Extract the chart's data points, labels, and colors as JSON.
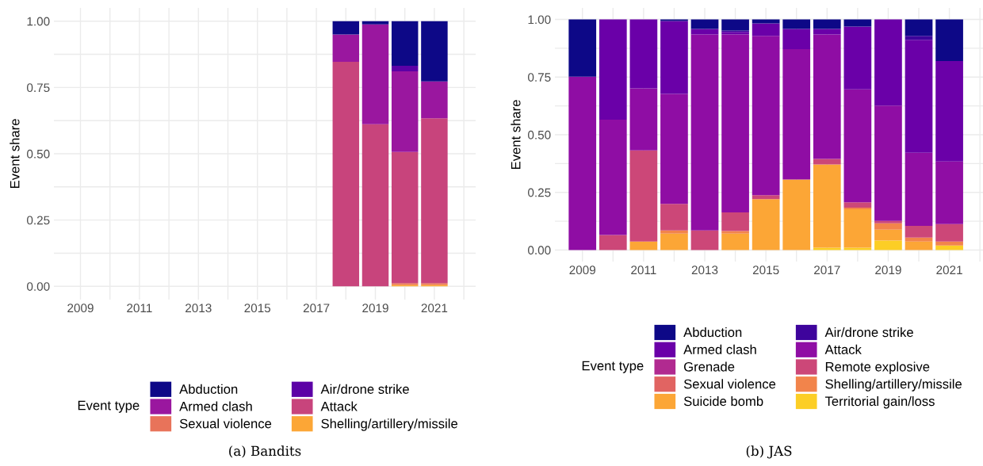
{
  "chart_data": [
    {
      "type": "bar",
      "stacked": true,
      "ylabel": "Event share",
      "legend_title": "Event type",
      "legend": "bottom",
      "grid": true,
      "annotations": [
        "(a) Bandits"
      ],
      "x": [
        2018,
        2019,
        2020,
        2021
      ],
      "xlim": [
        2008.1,
        2022.4
      ],
      "xticks": [
        2009,
        {
          "value": 2010,
          "label": null
        },
        2011,
        {
          "value": 2012,
          "label": null
        },
        2013,
        {
          "value": 2014,
          "label": null
        },
        2015,
        {
          "value": 2016,
          "label": null
        },
        2017,
        {
          "value": 2018,
          "label": null
        },
        2019,
        {
          "value": 2020,
          "label": null
        },
        2021,
        {
          "value": 2022,
          "label": null
        }
      ],
      "ylim": [
        -0.05,
        1.05
      ],
      "yticks": [
        {
          "value": 0,
          "label": "0.00"
        },
        {
          "value": 0.125,
          "label": null
        },
        {
          "value": 0.25,
          "label": "0.25"
        },
        {
          "value": 0.375,
          "label": null
        },
        {
          "value": 0.5,
          "label": "0.50"
        },
        {
          "value": 0.625,
          "label": null
        },
        {
          "value": 0.75,
          "label": "0.75"
        },
        {
          "value": 0.875,
          "label": null
        },
        {
          "value": 1,
          "label": "1.00"
        }
      ],
      "series": [
        {
          "name": "Shelling/artillery/missile",
          "color": "#fca636",
          "values": [
            null,
            null,
            0.006,
            0.006
          ]
        },
        {
          "name": "Sexual violence",
          "color": "#e8735a",
          "values": [
            null,
            null,
            0.006,
            0.006
          ]
        },
        {
          "name": "Attack",
          "color": "#c8447c",
          "values": [
            0.847,
            0.611,
            0.495,
            0.622
          ]
        },
        {
          "name": "Armed clash",
          "color": "#9a179f",
          "values": [
            0.103,
            0.377,
            0.304,
            0.139
          ]
        },
        {
          "name": "Air/drone strike",
          "color": "#5c01a6",
          "values": [
            null,
            null,
            0.021,
            null
          ]
        },
        {
          "name": "Abduction",
          "color": "#0d0887",
          "values": [
            0.05,
            0.012,
            0.168,
            0.227
          ]
        }
      ]
    },
    {
      "type": "bar",
      "stacked": true,
      "ylabel": "Event share",
      "legend_title": "Event type",
      "legend": "bottom",
      "grid": true,
      "annotations": [
        "(b) JAS"
      ],
      "x": [
        2009,
        2010,
        2011,
        2012,
        2013,
        2014,
        2015,
        2016,
        2017,
        2018,
        2019,
        2020,
        2021
      ],
      "xlim": [
        2008.1,
        2022.1
      ],
      "xticks": [
        2009,
        {
          "value": 2010,
          "label": null
        },
        2011,
        {
          "value": 2012,
          "label": null
        },
        2013,
        {
          "value": 2014,
          "label": null
        },
        2015,
        {
          "value": 2016,
          "label": null
        },
        2017,
        {
          "value": 2018,
          "label": null
        },
        2019,
        {
          "value": 2020,
          "label": null
        },
        2021,
        {
          "value": 2022,
          "label": null
        }
      ],
      "ylim": [
        -0.05,
        1.05
      ],
      "yticks": [
        {
          "value": 0,
          "label": "0.00"
        },
        {
          "value": 0.125,
          "label": null
        },
        {
          "value": 0.25,
          "label": "0.25"
        },
        {
          "value": 0.375,
          "label": null
        },
        {
          "value": 0.5,
          "label": "0.50"
        },
        {
          "value": 0.625,
          "label": null
        },
        {
          "value": 0.75,
          "label": "0.75"
        },
        {
          "value": 0.875,
          "label": null
        },
        {
          "value": 1,
          "label": "1.00"
        }
      ],
      "series": [
        {
          "name": "Territorial gain/loss",
          "color": "#fcce25",
          "values": [
            null,
            null,
            null,
            null,
            null,
            null,
            null,
            null,
            0.01,
            0.01,
            0.041,
            null,
            0.02
          ]
        },
        {
          "name": "Suicide bomb",
          "color": "#fca636",
          "values": [
            null,
            null,
            0.037,
            0.071,
            null,
            0.071,
            0.221,
            0.306,
            0.361,
            0.167,
            0.047,
            0.037,
            null
          ]
        },
        {
          "name": "Shelling/artillery/missile",
          "color": "#f2844b",
          "values": [
            null,
            null,
            null,
            0.014,
            null,
            0.011,
            null,
            null,
            null,
            0.007,
            0.028,
            0.017,
            0.017
          ]
        },
        {
          "name": "Sexual violence",
          "color": "#e16462",
          "values": [
            null,
            null,
            null,
            null,
            null,
            null,
            null,
            null,
            null,
            null,
            null,
            null,
            null
          ]
        },
        {
          "name": "Remote explosive",
          "color": "#cc4778",
          "values": [
            null,
            0.065,
            0.395,
            0.115,
            0.085,
            0.081,
            0.017,
            null,
            0.024,
            0.023,
            0.01,
            0.051,
            0.075
          ]
        },
        {
          "name": "Grenade",
          "color": "#b12a90",
          "values": [
            null,
            null,
            null,
            null,
            null,
            null,
            null,
            null,
            null,
            null,
            null,
            null,
            null
          ]
        },
        {
          "name": "Attack",
          "color": "#8f0da4",
          "values": [
            0.752,
            0.5,
            0.269,
            0.477,
            0.85,
            0.772,
            0.691,
            0.565,
            0.54,
            0.49,
            0.5,
            0.317,
            0.272
          ]
        },
        {
          "name": "Armed clash",
          "color": "#6a00a8",
          "values": [
            null,
            0.435,
            0.299,
            0.316,
            0.024,
            0.011,
            0.054,
            0.088,
            0.024,
            0.272,
            0.374,
            0.49,
            0.436
          ]
        },
        {
          "name": "Air/drone strike",
          "color": "#3e049c",
          "values": [
            null,
            null,
            null,
            null,
            null,
            0.006,
            null,
            null,
            null,
            null,
            null,
            0.017,
            null
          ]
        },
        {
          "name": "Abduction",
          "color": "#0d0887",
          "values": [
            0.248,
            null,
            null,
            0.007,
            0.041,
            0.048,
            0.017,
            0.041,
            0.041,
            0.031,
            null,
            0.071,
            0.18
          ]
        }
      ]
    }
  ]
}
